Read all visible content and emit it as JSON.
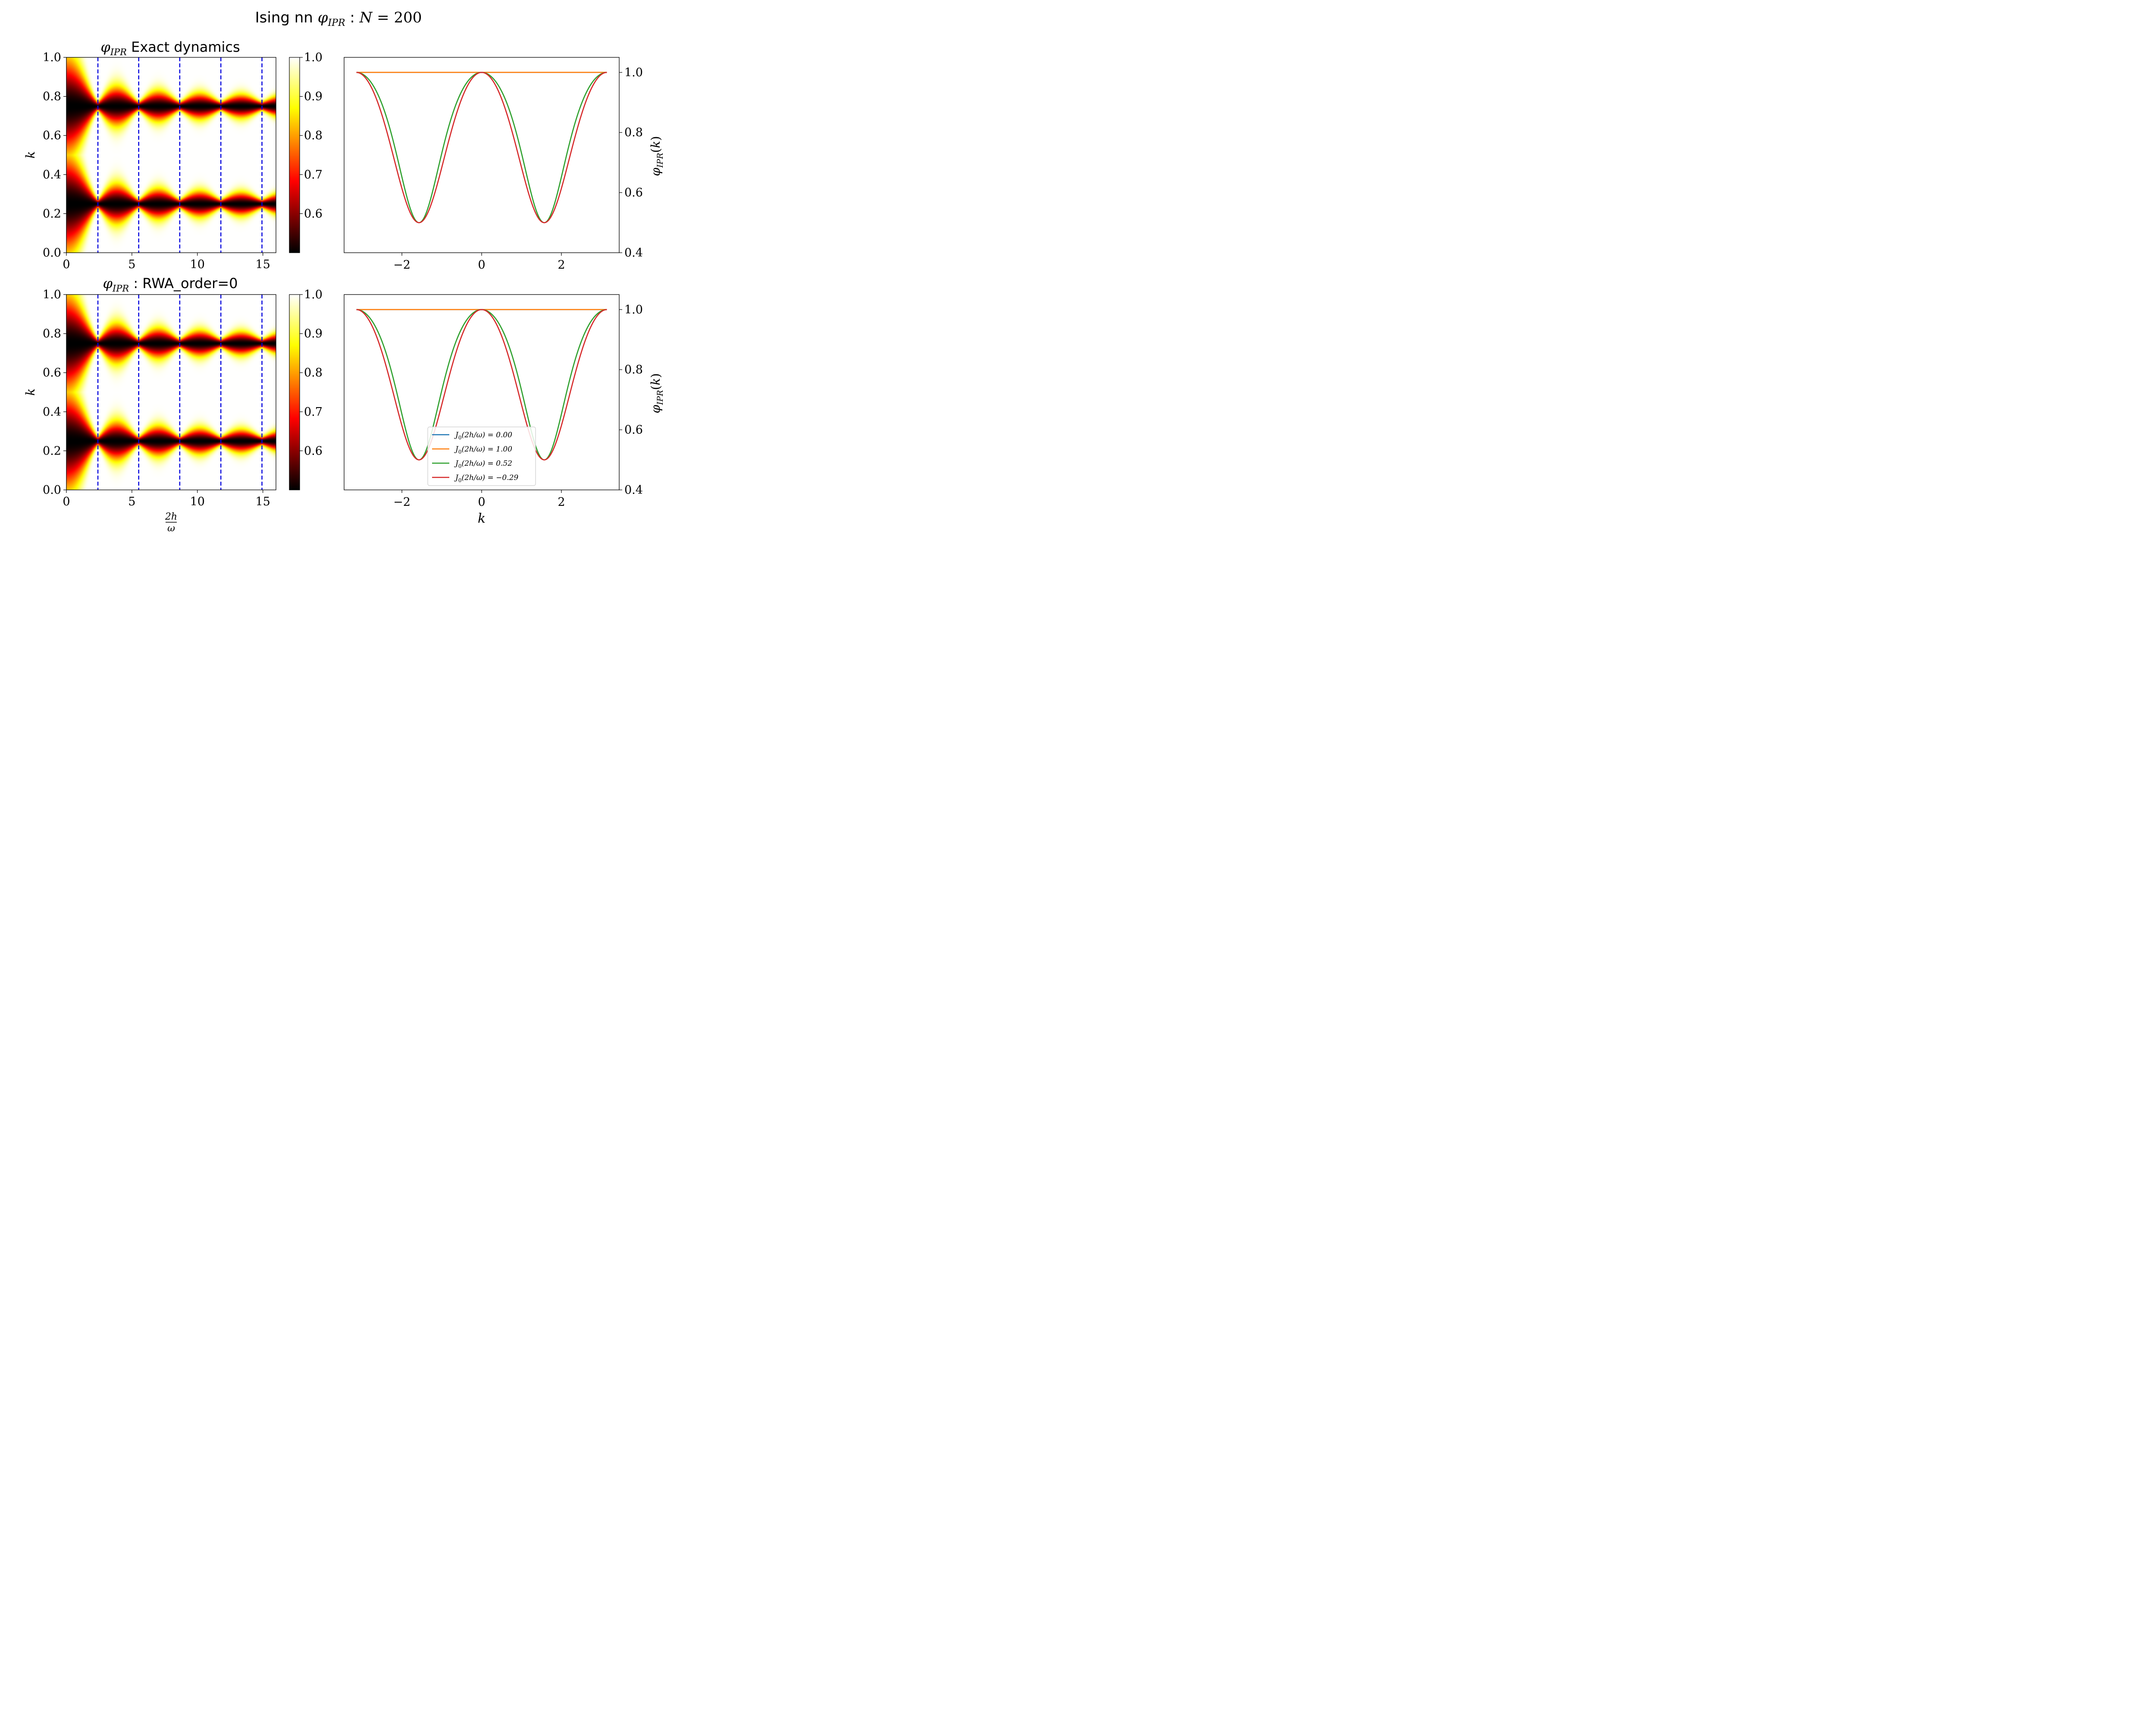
{
  "figure": {
    "title": "Ising nn φ_IPR : N = 200",
    "title_parts": [
      "Ising nn ",
      "φ",
      "IPR",
      " : ",
      "N",
      " = 200"
    ]
  },
  "chart_data": [
    {
      "type": "heatmap",
      "panel": "top-left",
      "title_parts": [
        "φ",
        "IPR",
        " Exact dynamics"
      ],
      "xlabel": "",
      "ylabel": "k",
      "xlim": [
        0,
        16
      ],
      "ylim": [
        0,
        1
      ],
      "xticks": [
        0,
        5,
        10,
        15
      ],
      "yticks": [
        0.0,
        0.2,
        0.4,
        0.6,
        0.8,
        1.0
      ],
      "dashed_vlines": [
        2.405,
        5.52,
        8.654,
        11.792,
        14.931
      ],
      "colorbar": {
        "colormap": "hot",
        "range": [
          0.5,
          1.0
        ],
        "ticks": [
          0.6,
          0.7,
          0.8,
          0.9,
          1.0
        ]
      },
      "minima_k": [
        0.25,
        0.75
      ],
      "min_value": 0.5
    },
    {
      "type": "line",
      "panel": "top-right",
      "xlabel": "",
      "ylabel": "φ_IPR(k)",
      "xlim": [
        -3.45,
        3.45
      ],
      "ylim": [
        0.4,
        1.05
      ],
      "xticks": [
        -2,
        0,
        2
      ],
      "yticks": [
        0.4,
        0.6,
        0.8,
        1.0
      ],
      "x_range": [
        -3.14159,
        3.14159
      ],
      "series": [
        {
          "name": "J0(2h/ω) = 0.00",
          "J0": 0.0,
          "color": "#1f77b4"
        },
        {
          "name": "J0(2h/ω) = 1.00",
          "J0": 1.0,
          "color": "#ff7f0e"
        },
        {
          "name": "J0(2h/ω) = 0.52",
          "J0": 0.52,
          "color": "#2ca02c"
        },
        {
          "name": "J0(2h/ω) = −0.29",
          "J0": -0.29,
          "color": "#d62728"
        }
      ],
      "curve_min": 0.5,
      "curve_max": 1.0,
      "minima_x": [
        -1.5708,
        1.5708
      ]
    },
    {
      "type": "heatmap",
      "panel": "bottom-left",
      "title_parts": [
        "φ",
        "IPR",
        " : RWA_order=0"
      ],
      "xlabel_num": "2h",
      "xlabel_den": "ω",
      "ylabel": "k",
      "xlim": [
        0,
        16
      ],
      "ylim": [
        0,
        1
      ],
      "xticks": [
        0,
        5,
        10,
        15
      ],
      "yticks": [
        0.0,
        0.2,
        0.4,
        0.6,
        0.8,
        1.0
      ],
      "dashed_vlines": [
        2.405,
        5.52,
        8.654,
        11.792,
        14.931
      ],
      "colorbar": {
        "colormap": "hot",
        "range": [
          0.5,
          1.0
        ],
        "ticks": [
          0.6,
          0.7,
          0.8,
          0.9,
          1.0
        ]
      },
      "minima_k": [
        0.25,
        0.75
      ],
      "min_value": 0.5
    },
    {
      "type": "line",
      "panel": "bottom-right",
      "xlabel": "k",
      "ylabel": "φ_IPR(k)",
      "xlim": [
        -3.45,
        3.45
      ],
      "ylim": [
        0.4,
        1.05
      ],
      "xticks": [
        -2,
        0,
        2
      ],
      "yticks": [
        0.4,
        0.6,
        0.8,
        1.0
      ],
      "x_range": [
        -3.14159,
        3.14159
      ],
      "legend": "lower center",
      "series": [
        {
          "name": "J0(2h/ω) = 0.00",
          "J0": 0.0,
          "color": "#1f77b4"
        },
        {
          "name": "J0(2h/ω) = 1.00",
          "J0": 1.0,
          "color": "#ff7f0e"
        },
        {
          "name": "J0(2h/ω) = 0.52",
          "J0": 0.52,
          "color": "#2ca02c"
        },
        {
          "name": "J0(2h/ω) = −0.29",
          "J0": -0.29,
          "color": "#d62728"
        }
      ],
      "legend_labels": [
        {
          "J": "J",
          "sub": "0",
          "rest": "(2h/ω) = 0.00"
        },
        {
          "J": "J",
          "sub": "0",
          "rest": "(2h/ω) = 1.00"
        },
        {
          "J": "J",
          "sub": "0",
          "rest": "(2h/ω) = 0.52"
        },
        {
          "J": "J",
          "sub": "0",
          "rest": "(2h/ω) = −0.29"
        }
      ],
      "curve_min": 0.5,
      "curve_max": 1.0,
      "minima_x": [
        -1.5708,
        1.5708
      ]
    }
  ]
}
